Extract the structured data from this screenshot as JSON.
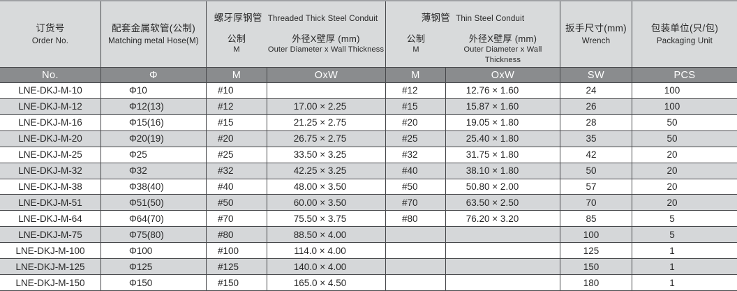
{
  "header": {
    "order": {
      "zh": "订货号",
      "en": "Order No."
    },
    "hose": {
      "zh": "配套金属软管(公制)",
      "en": "Matching metal Hose(M)"
    },
    "thick": {
      "zh": "螺牙厚钢管",
      "en": "Threaded Thick Steel Conduit",
      "metric_zh": "公制",
      "metric_en": "M",
      "od_zh": "外径X壁厚 (mm)",
      "od_en": "Outer Diameter x Wall Thickness"
    },
    "thin": {
      "zh": "薄钢管",
      "en": "Thin Steel Conduit",
      "metric_zh": "公制",
      "metric_en": "M",
      "od_zh": "外径X壁厚 (mm)",
      "od_en": "Outer Diameter x Wall Thickness"
    },
    "wrench": {
      "zh": "扳手尺寸(mm)",
      "en": "Wrench"
    },
    "pack": {
      "zh": "包装单位(只/包)",
      "en": "Packaging Unit"
    }
  },
  "table": {
    "subheader": [
      "No.",
      "Φ",
      "M",
      "OxW",
      "M",
      "OxW",
      "SW",
      "PCS"
    ],
    "rows": [
      [
        "LNE-DKJ-M-10",
        "Φ10",
        "#10",
        "",
        "#12",
        "12.76 × 1.60",
        "24",
        "100"
      ],
      [
        "LNE-DKJ-M-12",
        "Φ12(13)",
        "#12",
        "17.00 × 2.25",
        "#15",
        "15.87 × 1.60",
        "26",
        "100"
      ],
      [
        "LNE-DKJ-M-16",
        "Φ15(16)",
        "#15",
        "21.25 × 2.75",
        "#20",
        "19.05 × 1.80",
        "28",
        "50"
      ],
      [
        "LNE-DKJ-M-20",
        "Φ20(19)",
        "#20",
        "26.75 × 2.75",
        "#25",
        "25.40 × 1.80",
        "35",
        "50"
      ],
      [
        "LNE-DKJ-M-25",
        "Φ25",
        "#25",
        "33.50 × 3.25",
        "#32",
        "31.75 × 1.80",
        "42",
        "20"
      ],
      [
        "LNE-DKJ-M-32",
        "Φ32",
        "#32",
        "42.25 × 3.25",
        "#40",
        "38.10 × 1.80",
        "50",
        "20"
      ],
      [
        "LNE-DKJ-M-38",
        "Φ38(40)",
        "#40",
        "48.00 × 3.50",
        "#50",
        "50.80 × 2.00",
        "57",
        "20"
      ],
      [
        "LNE-DKJ-M-51",
        "Φ51(50)",
        "#50",
        "60.00 × 3.50",
        "#70",
        "63.50 × 2.50",
        "70",
        "20"
      ],
      [
        "LNE-DKJ-M-64",
        "Φ64(70)",
        "#70",
        "75.50 × 3.75",
        "#80",
        "76.20 × 3.20",
        "85",
        "5"
      ],
      [
        "LNE-DKJ-M-75",
        "Φ75(80)",
        "#80",
        "88.50 × 4.00",
        "",
        "",
        "100",
        "5"
      ],
      [
        "LNE-DKJ-M-100",
        "Φ100",
        "#100",
        "114.0 × 4.00",
        "",
        "",
        "125",
        "1"
      ],
      [
        "LNE-DKJ-M-125",
        "Φ125",
        "#125",
        "140.0 × 4.00",
        "",
        "",
        "150",
        "1"
      ],
      [
        "LNE-DKJ-M-150",
        "Φ150",
        "#150",
        "165.0 × 4.50",
        "",
        "",
        "180",
        "1"
      ]
    ]
  },
  "colors": {
    "line": "#47484b",
    "hdr-bg": "#d8dadb",
    "sub-bg": "#8a8c8e",
    "alt-bg": "#d5d7d9",
    "row-bg": "#ffffff",
    "txt": "#272727",
    "sub-txt": "#ffffff",
    "top-line": "#9fa1a4"
  }
}
